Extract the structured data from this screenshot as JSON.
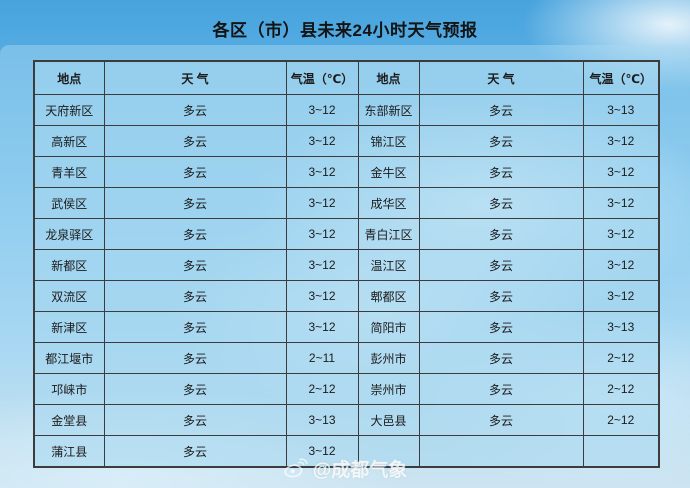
{
  "title": "各区（市）县未来24小时天气预报",
  "watermark": {
    "icon": "weibo-logo",
    "text": "@成都气象"
  },
  "colors": {
    "sky_top": "#47a3dd",
    "sky_bottom": "#eaeef1",
    "panel": "#abd9f1",
    "cell_blue": "#a7d8f0",
    "grid_border": "#3c3c3c",
    "title_text": "#141414",
    "watermark_text": "#ffffff"
  },
  "table": {
    "headers": [
      "地点",
      "天 气",
      "气温（℃）",
      "地点",
      "天 气",
      "气温（℃）"
    ],
    "rows": [
      [
        "天府新区",
        "多云",
        "3~12",
        "东部新区",
        "多云",
        "3~13"
      ],
      [
        "高新区",
        "多云",
        "3~12",
        "锦江区",
        "多云",
        "3~12"
      ],
      [
        "青羊区",
        "多云",
        "3~12",
        "金牛区",
        "多云",
        "3~12"
      ],
      [
        "武侯区",
        "多云",
        "3~12",
        "成华区",
        "多云",
        "3~12"
      ],
      [
        "龙泉驿区",
        "多云",
        "3~12",
        "青白江区",
        "多云",
        "3~12"
      ],
      [
        "新都区",
        "多云",
        "3~12",
        "温江区",
        "多云",
        "3~12"
      ],
      [
        "双流区",
        "多云",
        "3~12",
        "郫都区",
        "多云",
        "3~12"
      ],
      [
        "新津区",
        "多云",
        "3~12",
        "简阳市",
        "多云",
        "3~13"
      ],
      [
        "都江堰市",
        "多云",
        "2~11",
        "彭州市",
        "多云",
        "2~12"
      ],
      [
        "邛崃市",
        "多云",
        "2~12",
        "崇州市",
        "多云",
        "2~12"
      ],
      [
        "金堂县",
        "多云",
        "3~13",
        "大邑县",
        "多云",
        "2~12"
      ],
      [
        "蒲江县",
        "多云",
        "3~12",
        "",
        "",
        ""
      ]
    ]
  },
  "chart_data": {
    "type": "table",
    "title": "各区（市）县未来24小时天气预报",
    "columns": [
      "地点",
      "天气",
      "气温（℃）"
    ],
    "records": [
      {
        "location": "天府新区",
        "weather": "多云",
        "temp": "3~12"
      },
      {
        "location": "高新区",
        "weather": "多云",
        "temp": "3~12"
      },
      {
        "location": "青羊区",
        "weather": "多云",
        "temp": "3~12"
      },
      {
        "location": "武侯区",
        "weather": "多云",
        "temp": "3~12"
      },
      {
        "location": "龙泉驿区",
        "weather": "多云",
        "temp": "3~12"
      },
      {
        "location": "新都区",
        "weather": "多云",
        "temp": "3~12"
      },
      {
        "location": "双流区",
        "weather": "多云",
        "temp": "3~12"
      },
      {
        "location": "新津区",
        "weather": "多云",
        "temp": "3~12"
      },
      {
        "location": "都江堰市",
        "weather": "多云",
        "temp": "2~11"
      },
      {
        "location": "邛崃市",
        "weather": "多云",
        "temp": "2~12"
      },
      {
        "location": "金堂县",
        "weather": "多云",
        "temp": "3~13"
      },
      {
        "location": "蒲江县",
        "weather": "多云",
        "temp": "3~12"
      },
      {
        "location": "东部新区",
        "weather": "多云",
        "temp": "3~13"
      },
      {
        "location": "锦江区",
        "weather": "多云",
        "temp": "3~12"
      },
      {
        "location": "金牛区",
        "weather": "多云",
        "temp": "3~12"
      },
      {
        "location": "成华区",
        "weather": "多云",
        "temp": "3~12"
      },
      {
        "location": "青白江区",
        "weather": "多云",
        "temp": "3~12"
      },
      {
        "location": "温江区",
        "weather": "多云",
        "temp": "3~12"
      },
      {
        "location": "郫都区",
        "weather": "多云",
        "temp": "3~12"
      },
      {
        "location": "简阳市",
        "weather": "多云",
        "temp": "3~13"
      },
      {
        "location": "彭州市",
        "weather": "多云",
        "temp": "2~12"
      },
      {
        "location": "崇州市",
        "weather": "多云",
        "temp": "2~12"
      },
      {
        "location": "大邑县",
        "weather": "多云",
        "temp": "2~12"
      }
    ]
  }
}
